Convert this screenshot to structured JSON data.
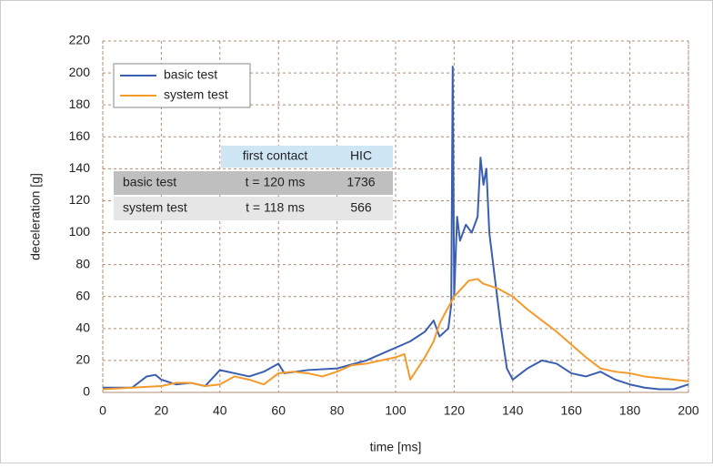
{
  "chart_data": {
    "type": "line",
    "x_label": "time [ms]",
    "y_label": "deceleration [g]",
    "xlim": [
      0,
      200
    ],
    "xticks": [
      0,
      20,
      40,
      60,
      80,
      100,
      120,
      140,
      160,
      180,
      200
    ],
    "ylim": [
      0,
      220
    ],
    "yticks": [
      0,
      20,
      40,
      60,
      80,
      100,
      120,
      140,
      160,
      180,
      200,
      220
    ],
    "grid": true,
    "legend": "upper left",
    "series": [
      {
        "name": "basic test",
        "color": "#3a5fb0",
        "x": [
          0,
          10,
          15,
          18,
          20,
          25,
          30,
          35,
          40,
          45,
          50,
          55,
          60,
          62,
          70,
          80,
          90,
          100,
          105,
          110,
          113,
          115,
          118,
          119,
          119.5,
          120,
          121,
          122,
          124,
          126,
          128,
          129,
          130,
          131,
          132,
          134,
          136,
          138,
          140,
          145,
          150,
          155,
          160,
          165,
          170,
          175,
          180,
          185,
          190,
          195,
          200
        ],
        "values": [
          3,
          3,
          10,
          11,
          8,
          5,
          6,
          4,
          14,
          12,
          10,
          13,
          18,
          12,
          14,
          15,
          20,
          28,
          32,
          38,
          45,
          35,
          40,
          55,
          204,
          60,
          110,
          95,
          105,
          100,
          110,
          147,
          130,
          140,
          100,
          70,
          40,
          15,
          8,
          15,
          20,
          18,
          12,
          10,
          13,
          8,
          5,
          3,
          2,
          2,
          5
        ]
      },
      {
        "name": "system test",
        "color": "#f39a2b",
        "x": [
          0,
          10,
          20,
          25,
          30,
          35,
          40,
          45,
          50,
          55,
          60,
          65,
          70,
          75,
          80,
          85,
          90,
          95,
          100,
          103,
          105,
          110,
          113,
          115,
          117,
          120,
          125,
          128,
          130,
          135,
          140,
          145,
          150,
          155,
          160,
          165,
          170,
          175,
          180,
          185,
          190,
          195,
          200
        ],
        "values": [
          2,
          3,
          4,
          6,
          6,
          4,
          5,
          10,
          8,
          5,
          12,
          13,
          12,
          10,
          13,
          17,
          18,
          20,
          22,
          24,
          8,
          22,
          32,
          43,
          50,
          60,
          70,
          71,
          68,
          65,
          60,
          52,
          45,
          38,
          30,
          22,
          15,
          13,
          12,
          10,
          9,
          8,
          7
        ]
      }
    ],
    "table": {
      "columns": [
        "first contact",
        "HIC"
      ],
      "rows": [
        {
          "label": "basic test",
          "cells": [
            "t = 120 ms",
            "1736"
          ]
        },
        {
          "label": "system test",
          "cells": [
            "t = 118 ms",
            "566"
          ]
        }
      ]
    }
  }
}
